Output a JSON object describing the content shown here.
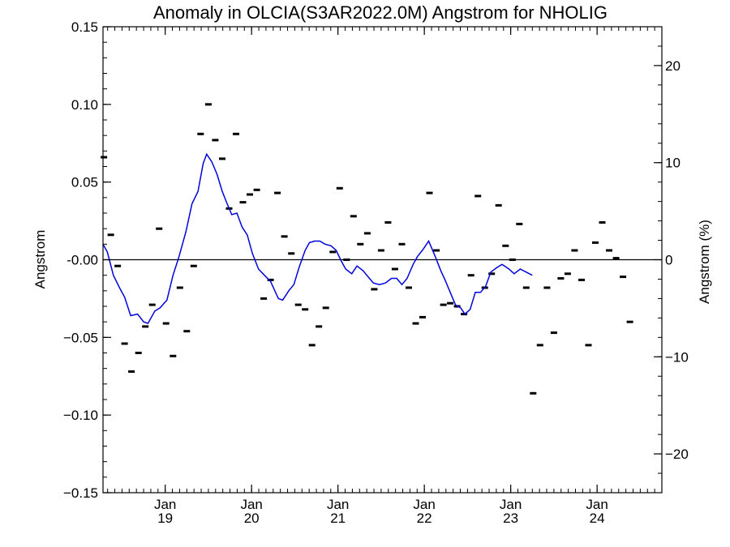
{
  "chart_data": {
    "type": "scatter",
    "title": "Anomaly in OLCIA(S3AR2022.0M) Angstrom for NHOLIG",
    "ylabel": "Angstrom",
    "ylabel_right": "Angstrom (%)",
    "xlim": [
      2018.28,
      2024.75
    ],
    "ylim": [
      -0.15,
      0.15
    ],
    "ylim_right": [
      -24,
      24
    ],
    "yticks": [
      -0.15,
      -0.1,
      -0.05,
      0.0,
      0.05,
      0.1,
      0.15
    ],
    "ytick_labels": [
      "−0.15",
      "−0.10",
      "−0.05",
      "-0.00",
      "0.05",
      "0.10",
      "0.15"
    ],
    "yticks_right": [
      -20,
      -10,
      0,
      10,
      20
    ],
    "ytick_labels_right": [
      "−20",
      "−10",
      "0",
      "10",
      "20"
    ],
    "xticks": [
      {
        "x": 2019.0,
        "month": "Jan",
        "year": "19"
      },
      {
        "x": 2020.0,
        "month": "Jan",
        "year": "20"
      },
      {
        "x": 2021.0,
        "month": "Jan",
        "year": "21"
      },
      {
        "x": 2022.0,
        "month": "Jan",
        "year": "22"
      },
      {
        "x": 2023.0,
        "month": "Jan",
        "year": "23"
      },
      {
        "x": 2024.0,
        "month": "Jan",
        "year": "24"
      }
    ],
    "reference_line": 0.0,
    "series": [
      {
        "kind": "points",
        "color": "#000000",
        "points": [
          [
            2018.29,
            0.066
          ],
          [
            2018.37,
            0.016
          ],
          [
            2018.45,
            -0.004
          ],
          [
            2018.53,
            -0.054
          ],
          [
            2018.61,
            -0.072
          ],
          [
            2018.69,
            -0.06
          ],
          [
            2018.77,
            -0.043
          ],
          [
            2018.85,
            -0.029
          ],
          [
            2018.93,
            0.02
          ],
          [
            2019.01,
            -0.041
          ],
          [
            2019.09,
            -0.062
          ],
          [
            2019.17,
            -0.018
          ],
          [
            2019.25,
            -0.046
          ],
          [
            2019.33,
            -0.004
          ],
          [
            2019.41,
            0.081
          ],
          [
            2019.5,
            0.1
          ],
          [
            2019.58,
            0.077
          ],
          [
            2019.66,
            0.065
          ],
          [
            2019.74,
            0.033
          ],
          [
            2019.82,
            0.081
          ],
          [
            2019.9,
            0.037
          ],
          [
            2019.98,
            0.042
          ],
          [
            2020.06,
            0.045
          ],
          [
            2020.14,
            -0.025
          ],
          [
            2020.22,
            -0.013
          ],
          [
            2020.3,
            0.043
          ],
          [
            2020.38,
            0.015
          ],
          [
            2020.46,
            0.004
          ],
          [
            2020.54,
            -0.029
          ],
          [
            2020.62,
            -0.032
          ],
          [
            2020.7,
            -0.055
          ],
          [
            2020.78,
            -0.043
          ],
          [
            2020.86,
            -0.031
          ],
          [
            2020.94,
            0.005
          ],
          [
            2021.02,
            0.046
          ],
          [
            2021.1,
            0.0
          ],
          [
            2021.18,
            0.028
          ],
          [
            2021.26,
            0.01
          ],
          [
            2021.34,
            0.017
          ],
          [
            2021.42,
            -0.019
          ],
          [
            2021.5,
            0.006
          ],
          [
            2021.58,
            0.024
          ],
          [
            2021.66,
            -0.006
          ],
          [
            2021.74,
            0.01
          ],
          [
            2021.82,
            -0.018
          ],
          [
            2021.9,
            -0.041
          ],
          [
            2021.98,
            -0.037
          ],
          [
            2022.06,
            0.043
          ],
          [
            2022.14,
            0.006
          ],
          [
            2022.22,
            -0.029
          ],
          [
            2022.3,
            -0.028
          ],
          [
            2022.38,
            -0.03
          ],
          [
            2022.46,
            -0.035
          ],
          [
            2022.54,
            -0.01
          ],
          [
            2022.62,
            0.041
          ],
          [
            2022.7,
            -0.018
          ],
          [
            2022.78,
            -0.009
          ],
          [
            2022.86,
            0.035
          ],
          [
            2022.94,
            0.009
          ],
          [
            2023.02,
            0.0
          ],
          [
            2023.1,
            0.023
          ],
          [
            2023.18,
            -0.018
          ],
          [
            2023.26,
            -0.086
          ],
          [
            2023.34,
            -0.055
          ],
          [
            2023.42,
            -0.018
          ],
          [
            2023.5,
            -0.047
          ],
          [
            2023.58,
            -0.012
          ],
          [
            2023.66,
            -0.009
          ],
          [
            2023.74,
            0.006
          ],
          [
            2023.82,
            -0.013
          ],
          [
            2023.9,
            -0.055
          ],
          [
            2023.98,
            0.011
          ],
          [
            2024.06,
            0.024
          ],
          [
            2024.14,
            0.006
          ],
          [
            2024.22,
            0.001
          ],
          [
            2024.3,
            -0.011
          ],
          [
            2024.38,
            -0.04
          ]
        ]
      },
      {
        "kind": "line",
        "color": "#0000dd",
        "points": [
          [
            2018.28,
            0.01
          ],
          [
            2018.33,
            0.005
          ],
          [
            2018.4,
            -0.01
          ],
          [
            2018.48,
            -0.019
          ],
          [
            2018.53,
            -0.024
          ],
          [
            2018.6,
            -0.036
          ],
          [
            2018.68,
            -0.035
          ],
          [
            2018.75,
            -0.04
          ],
          [
            2018.8,
            -0.041
          ],
          [
            2018.88,
            -0.033
          ],
          [
            2018.94,
            -0.031
          ],
          [
            2019.02,
            -0.026
          ],
          [
            2019.09,
            -0.01
          ],
          [
            2019.16,
            0.002
          ],
          [
            2019.24,
            0.018
          ],
          [
            2019.31,
            0.036
          ],
          [
            2019.38,
            0.044
          ],
          [
            2019.44,
            0.062
          ],
          [
            2019.48,
            0.068
          ],
          [
            2019.54,
            0.063
          ],
          [
            2019.6,
            0.055
          ],
          [
            2019.66,
            0.044
          ],
          [
            2019.71,
            0.037
          ],
          [
            2019.77,
            0.029
          ],
          [
            2019.83,
            0.03
          ],
          [
            2019.89,
            0.021
          ],
          [
            2019.95,
            0.016
          ],
          [
            2020.01,
            0.004
          ],
          [
            2020.08,
            -0.006
          ],
          [
            2020.15,
            -0.01
          ],
          [
            2020.22,
            -0.014
          ],
          [
            2020.31,
            -0.025
          ],
          [
            2020.36,
            -0.026
          ],
          [
            2020.43,
            -0.02
          ],
          [
            2020.49,
            -0.016
          ],
          [
            2020.55,
            -0.005
          ],
          [
            2020.62,
            0.006
          ],
          [
            2020.67,
            0.011
          ],
          [
            2020.73,
            0.012
          ],
          [
            2020.79,
            0.012
          ],
          [
            2020.85,
            0.01
          ],
          [
            2020.92,
            0.009
          ],
          [
            2020.98,
            0.006
          ],
          [
            2021.04,
            -0.001
          ],
          [
            2021.09,
            -0.006
          ],
          [
            2021.16,
            -0.009
          ],
          [
            2021.22,
            -0.004
          ],
          [
            2021.29,
            -0.007
          ],
          [
            2021.35,
            -0.011
          ],
          [
            2021.41,
            -0.015
          ],
          [
            2021.48,
            -0.016
          ],
          [
            2021.55,
            -0.015
          ],
          [
            2021.62,
            -0.012
          ],
          [
            2021.68,
            -0.012
          ],
          [
            2021.74,
            -0.016
          ],
          [
            2021.8,
            -0.012
          ],
          [
            2021.87,
            -0.003
          ],
          [
            2021.92,
            0.002
          ],
          [
            2021.99,
            0.007
          ],
          [
            2022.05,
            0.012
          ],
          [
            2022.12,
            0.003
          ],
          [
            2022.19,
            -0.007
          ],
          [
            2022.24,
            -0.013
          ],
          [
            2022.3,
            -0.021
          ],
          [
            2022.36,
            -0.029
          ],
          [
            2022.42,
            -0.031
          ],
          [
            2022.47,
            -0.035
          ],
          [
            2022.53,
            -0.032
          ],
          [
            2022.59,
            -0.021
          ],
          [
            2022.65,
            -0.021
          ],
          [
            2022.71,
            -0.017
          ],
          [
            2022.77,
            -0.008
          ],
          [
            2022.84,
            -0.005
          ],
          [
            2022.9,
            -0.003
          ],
          [
            2022.98,
            -0.006
          ],
          [
            2023.04,
            -0.009
          ],
          [
            2023.11,
            -0.006
          ],
          [
            2023.18,
            -0.008
          ],
          [
            2023.25,
            -0.01
          ]
        ]
      }
    ]
  }
}
